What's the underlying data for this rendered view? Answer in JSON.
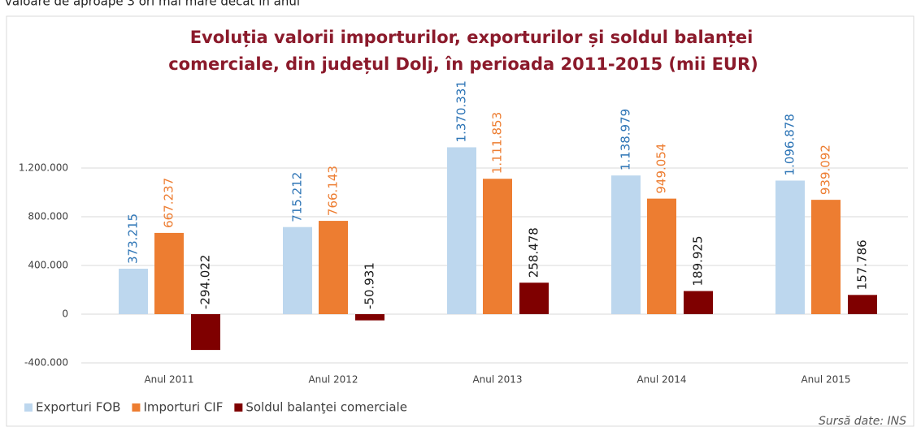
{
  "page_text": "valoare de aproape 3 ori mai mare decât în anul",
  "chart_data": {
    "type": "bar",
    "title": [
      "Evoluția valorii importurilor, exporturilor și soldul balanței",
      "comerciale, din județul Dolj, în perioada 2011-2015 (mii EUR)"
    ],
    "source": "Sursă date: INS",
    "categories": [
      "Anul 2011",
      "Anul 2012",
      "Anul 2013",
      "Anul 2014",
      "Anul 2015"
    ],
    "series": [
      {
        "name": "Exporturi FOB",
        "color": "#bdd7ee",
        "label_color": "#2e75b6",
        "values": [
          373215,
          715212,
          1370331,
          1138979,
          1096878
        ],
        "value_labels": [
          "373.215",
          "715.212",
          "1.370.331",
          "1.138.979",
          "1.096.878"
        ]
      },
      {
        "name": "Importuri CIF",
        "color": "#ed7d31",
        "label_color": "#ed7d31",
        "values": [
          667237,
          766143,
          1111853,
          949054,
          939092
        ],
        "value_labels": [
          "667.237",
          "766.143",
          "1.111.853",
          "949.054",
          "939.092"
        ]
      },
      {
        "name": "Soldul balanţei comerciale",
        "color": "#7f0000",
        "label_color": "#1a1a1a",
        "values": [
          -294022,
          -50931,
          258478,
          189925,
          157786
        ],
        "value_labels": [
          "-294.022",
          "-50.931",
          "258.478",
          "189.925",
          "157.786"
        ]
      }
    ],
    "ylim": [
      -400000,
      1600000
    ],
    "yticks": [
      {
        "value": -400000,
        "label": "-400.000"
      },
      0,
      {
        "value": 400000,
        "label": "400.000"
      },
      {
        "value": 800000,
        "label": "800.000"
      },
      {
        "value": 1200000,
        "label": "1.200.000"
      }
    ],
    "grid": true,
    "legend": "bottom-left"
  }
}
